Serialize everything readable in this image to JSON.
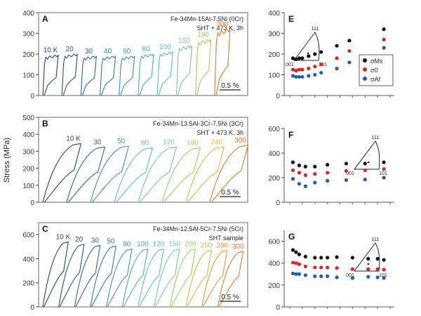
{
  "figure": {
    "ylabel": "Stress (MPa)"
  },
  "chart_data": [
    {
      "type": "line",
      "panel": "A",
      "title": "Fe-34Mn-15Al-7.5Ni (0Cr)",
      "subtitle": "SHT + 473 K, 3h",
      "xlabel": "",
      "ylabel": "Stress (MPa)",
      "ylim": [
        0,
        400
      ],
      "yticks": [
        "0",
        "100",
        "200",
        "300",
        "400"
      ],
      "scale_bar": "0.5 %",
      "series": [
        {
          "name": "10 K",
          "peak": 195,
          "color": "#1f3f7a"
        },
        {
          "name": "20",
          "peak": 200,
          "color": "#24508a"
        },
        {
          "name": "30",
          "peak": 190,
          "color": "#2a6496"
        },
        {
          "name": "40",
          "peak": 190,
          "color": "#3178a3"
        },
        {
          "name": "60",
          "peak": 190,
          "color": "#3a8fb5"
        },
        {
          "name": "80",
          "peak": 200,
          "color": "#4aa6c4"
        },
        {
          "name": "100",
          "peak": 210,
          "color": "#58bccf"
        },
        {
          "name": "150",
          "peak": 240,
          "color": "#7cc39a"
        },
        {
          "name": "190",
          "peak": 270,
          "color": "#9ccc5e"
        },
        {
          "name": "300",
          "peak": 320,
          "color": "#e07a2c"
        }
      ]
    },
    {
      "type": "line",
      "panel": "B",
      "title": "Fe-34Mn-13.5Al-3Cr-7.5Ni (3Cr)",
      "subtitle": "SHT + 473 K, 3h",
      "xlabel": "",
      "ylabel": "Stress (MPa)",
      "ylim": [
        0,
        500
      ],
      "yticks": [
        "0",
        "100",
        "200",
        "300",
        "400",
        "500"
      ],
      "scale_bar": "0.5 %",
      "series": [
        {
          "name": "10 K",
          "peak": 345,
          "color": "#1f3f7a"
        },
        {
          "name": "30",
          "peak": 325,
          "color": "#2a6496"
        },
        {
          "name": "50",
          "peak": 330,
          "color": "#3a8fb5"
        },
        {
          "name": "80",
          "peak": 320,
          "color": "#58bccf"
        },
        {
          "name": "120",
          "peak": 325,
          "color": "#6fc7b4"
        },
        {
          "name": "180",
          "peak": 320,
          "color": "#9ccc5e"
        },
        {
          "name": "240",
          "peak": 325,
          "color": "#d7b83c"
        },
        {
          "name": "300",
          "peak": 335,
          "color": "#e07a2c"
        }
      ]
    },
    {
      "type": "line",
      "panel": "C",
      "title": "Fe-34Mn-12.5Al-5Cr-7.5Ni (5Cr)",
      "subtitle": "SHT sample",
      "xlabel": "",
      "ylabel": "Stress (MPa)",
      "ylim": [
        0,
        700
      ],
      "yticks": [
        "0",
        "200",
        "400",
        "600"
      ],
      "scale_bar": "0.5 %",
      "series": [
        {
          "name": "10 K",
          "peak": 540,
          "color": "#1f3f7a"
        },
        {
          "name": "20",
          "peak": 520,
          "color": "#24508a"
        },
        {
          "name": "30",
          "peak": 510,
          "color": "#2a6496"
        },
        {
          "name": "50",
          "peak": 505,
          "color": "#3178a3"
        },
        {
          "name": "80",
          "peak": 480,
          "color": "#3a8fb5"
        },
        {
          "name": "100",
          "peak": 480,
          "color": "#4aa6c4"
        },
        {
          "name": "120",
          "peak": 480,
          "color": "#58bccf"
        },
        {
          "name": "150",
          "peak": 480,
          "color": "#6fc7b4"
        },
        {
          "name": "200",
          "peak": 480,
          "color": "#9ccc5e"
        },
        {
          "name": "250",
          "peak": 470,
          "color": "#d7b83c"
        },
        {
          "name": "280",
          "peak": 470,
          "color": "#e39a36"
        },
        {
          "name": "300",
          "peak": 460,
          "color": "#e07a2c"
        }
      ]
    },
    {
      "type": "scatter",
      "panel": "E",
      "xlabel": "",
      "ylabel": "",
      "xlim": [
        0,
        320
      ],
      "ylim": [
        0,
        400
      ],
      "yticks": [
        "0",
        "100",
        "200",
        "300",
        "400"
      ],
      "inset_labels": [
        "111",
        "001",
        "101"
      ],
      "legend": [
        "σMs",
        "σ0",
        "σAf"
      ],
      "x": [
        10,
        20,
        30,
        40,
        60,
        80,
        100,
        150,
        190,
        300
      ],
      "series": [
        {
          "name": "σMs",
          "color": "#111111",
          "values": [
            180,
            175,
            180,
            180,
            190,
            200,
            210,
            240,
            265,
            320
          ]
        },
        {
          "name": "σ0",
          "color": "#d62728",
          "values": [
            125,
            120,
            125,
            125,
            130,
            140,
            150,
            180,
            215,
            270
          ]
        },
        {
          "name": "σAf",
          "color": "#1f5fa8",
          "values": [
            95,
            90,
            90,
            90,
            95,
            100,
            110,
            130,
            160,
            230
          ]
        }
      ]
    },
    {
      "type": "scatter",
      "panel": "F",
      "xlabel": "",
      "ylabel": "",
      "xlim": [
        0,
        320
      ],
      "ylim": [
        0,
        600
      ],
      "yticks": [
        "0",
        "200",
        "400",
        "600"
      ],
      "inset_labels": [
        "111",
        "001",
        "101"
      ],
      "x": [
        10,
        30,
        50,
        80,
        120,
        180,
        240,
        300
      ],
      "series": [
        {
          "name": "σMs",
          "color": "#111111",
          "values": [
            325,
            300,
            290,
            290,
            305,
            315,
            315,
            325
          ]
        },
        {
          "name": "σ0",
          "color": "#d62728",
          "values": [
            260,
            240,
            220,
            230,
            240,
            255,
            260,
            270
          ]
        },
        {
          "name": "σAf",
          "color": "#1f5fa8",
          "values": [
            190,
            150,
            130,
            160,
            175,
            180,
            185,
            200
          ]
        }
      ]
    },
    {
      "type": "scatter",
      "panel": "G",
      "xlabel": "",
      "ylabel": "",
      "xlim": [
        0,
        320
      ],
      "ylim": [
        0,
        700
      ],
      "yticks": [
        "0",
        "200",
        "400",
        "600"
      ],
      "inset_labels": [
        "111",
        "001",
        "101"
      ],
      "x": [
        10,
        20,
        30,
        50,
        80,
        100,
        120,
        150,
        200,
        250,
        280,
        300
      ],
      "series": [
        {
          "name": "σMs",
          "color": "#111111",
          "values": [
            520,
            500,
            480,
            460,
            450,
            450,
            450,
            455,
            450,
            440,
            440,
            430
          ]
        },
        {
          "name": "σ0",
          "color": "#d62728",
          "values": [
            405,
            400,
            390,
            370,
            360,
            360,
            360,
            355,
            345,
            345,
            345,
            340
          ]
        },
        {
          "name": "σAf",
          "color": "#1f5fa8",
          "values": [
            305,
            300,
            300,
            290,
            280,
            280,
            280,
            270,
            265,
            275,
            270,
            265
          ]
        }
      ]
    }
  ]
}
